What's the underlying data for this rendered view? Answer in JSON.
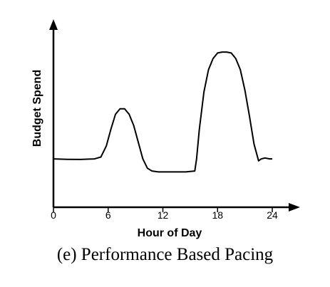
{
  "caption": "(e) Performance Based Pacing",
  "chart_data": {
    "type": "line",
    "xlabel": "Hour of Day",
    "ylabel": "Budget Spend",
    "xticks": [
      0,
      6,
      12,
      18,
      24
    ],
    "xlim": [
      0,
      26
    ],
    "ylim": [
      0,
      1
    ],
    "grid": false,
    "series": [
      {
        "x": [
          0,
          1.5,
          3,
          4.5,
          5.2,
          5.8,
          6.3,
          6.8,
          7.3,
          7.8,
          8.3,
          8.8,
          9.3,
          9.8,
          10.3,
          10.8,
          11.5,
          13,
          14.5,
          15.5,
          15.7,
          16.0,
          16.5,
          17.0,
          17.5,
          18.0,
          18.5,
          19.0,
          19.5,
          20.0,
          20.5,
          21.0,
          21.5,
          22.0,
          22.5,
          22.8,
          23.2,
          23.7,
          24.0
        ],
        "y": [
          0.26,
          0.258,
          0.257,
          0.26,
          0.27,
          0.33,
          0.42,
          0.5,
          0.53,
          0.53,
          0.5,
          0.44,
          0.35,
          0.26,
          0.21,
          0.195,
          0.19,
          0.19,
          0.19,
          0.195,
          0.26,
          0.42,
          0.62,
          0.74,
          0.8,
          0.83,
          0.835,
          0.835,
          0.83,
          0.8,
          0.74,
          0.63,
          0.49,
          0.34,
          0.25,
          0.26,
          0.265,
          0.26,
          0.26
        ]
      }
    ]
  }
}
